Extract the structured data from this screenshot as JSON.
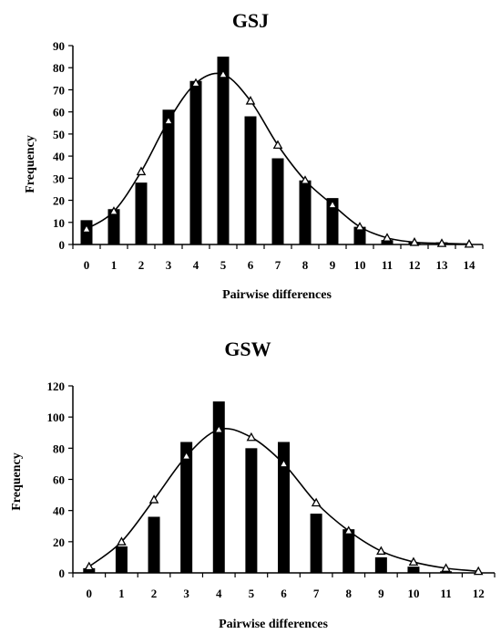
{
  "chart_data": [
    {
      "type": "bar",
      "title": "GSJ",
      "xlabel": "Pairwise differences",
      "ylabel": "Frequency",
      "categories": [
        "0",
        "1",
        "2",
        "3",
        "4",
        "5",
        "6",
        "7",
        "8",
        "9",
        "10",
        "11",
        "12",
        "13",
        "14"
      ],
      "ylim": [
        0,
        90
      ],
      "yticks": [
        0,
        10,
        20,
        30,
        40,
        50,
        60,
        70,
        80,
        90
      ],
      "series": [
        {
          "type": "bar",
          "values": [
            11,
            16,
            28,
            61,
            74,
            85,
            58,
            39,
            29,
            21,
            8,
            2,
            1,
            1,
            0
          ]
        },
        {
          "type": "line",
          "marker": "triangle",
          "values": [
            7,
            15,
            33,
            56,
            73,
            77,
            65,
            45,
            29,
            18,
            8,
            3,
            1,
            0.5,
            0.2
          ]
        }
      ],
      "legend": "none",
      "grid": false
    },
    {
      "type": "bar",
      "title": "GSW",
      "xlabel": "Pairwise differences",
      "ylabel": "Frequency",
      "categories": [
        "0",
        "1",
        "2",
        "3",
        "4",
        "5",
        "6",
        "7",
        "8",
        "9",
        "10",
        "11",
        "12"
      ],
      "ylim": [
        0,
        120
      ],
      "yticks": [
        0,
        20,
        40,
        60,
        80,
        100,
        120
      ],
      "series": [
        {
          "type": "bar",
          "values": [
            3,
            17,
            36,
            84,
            110,
            80,
            84,
            38,
            28,
            10,
            4,
            1,
            0
          ]
        },
        {
          "type": "line",
          "marker": "triangle",
          "values": [
            4,
            20,
            47,
            75,
            92,
            87,
            70,
            45,
            27,
            14,
            7,
            3,
            1
          ]
        }
      ],
      "legend": "none",
      "grid": false
    }
  ]
}
